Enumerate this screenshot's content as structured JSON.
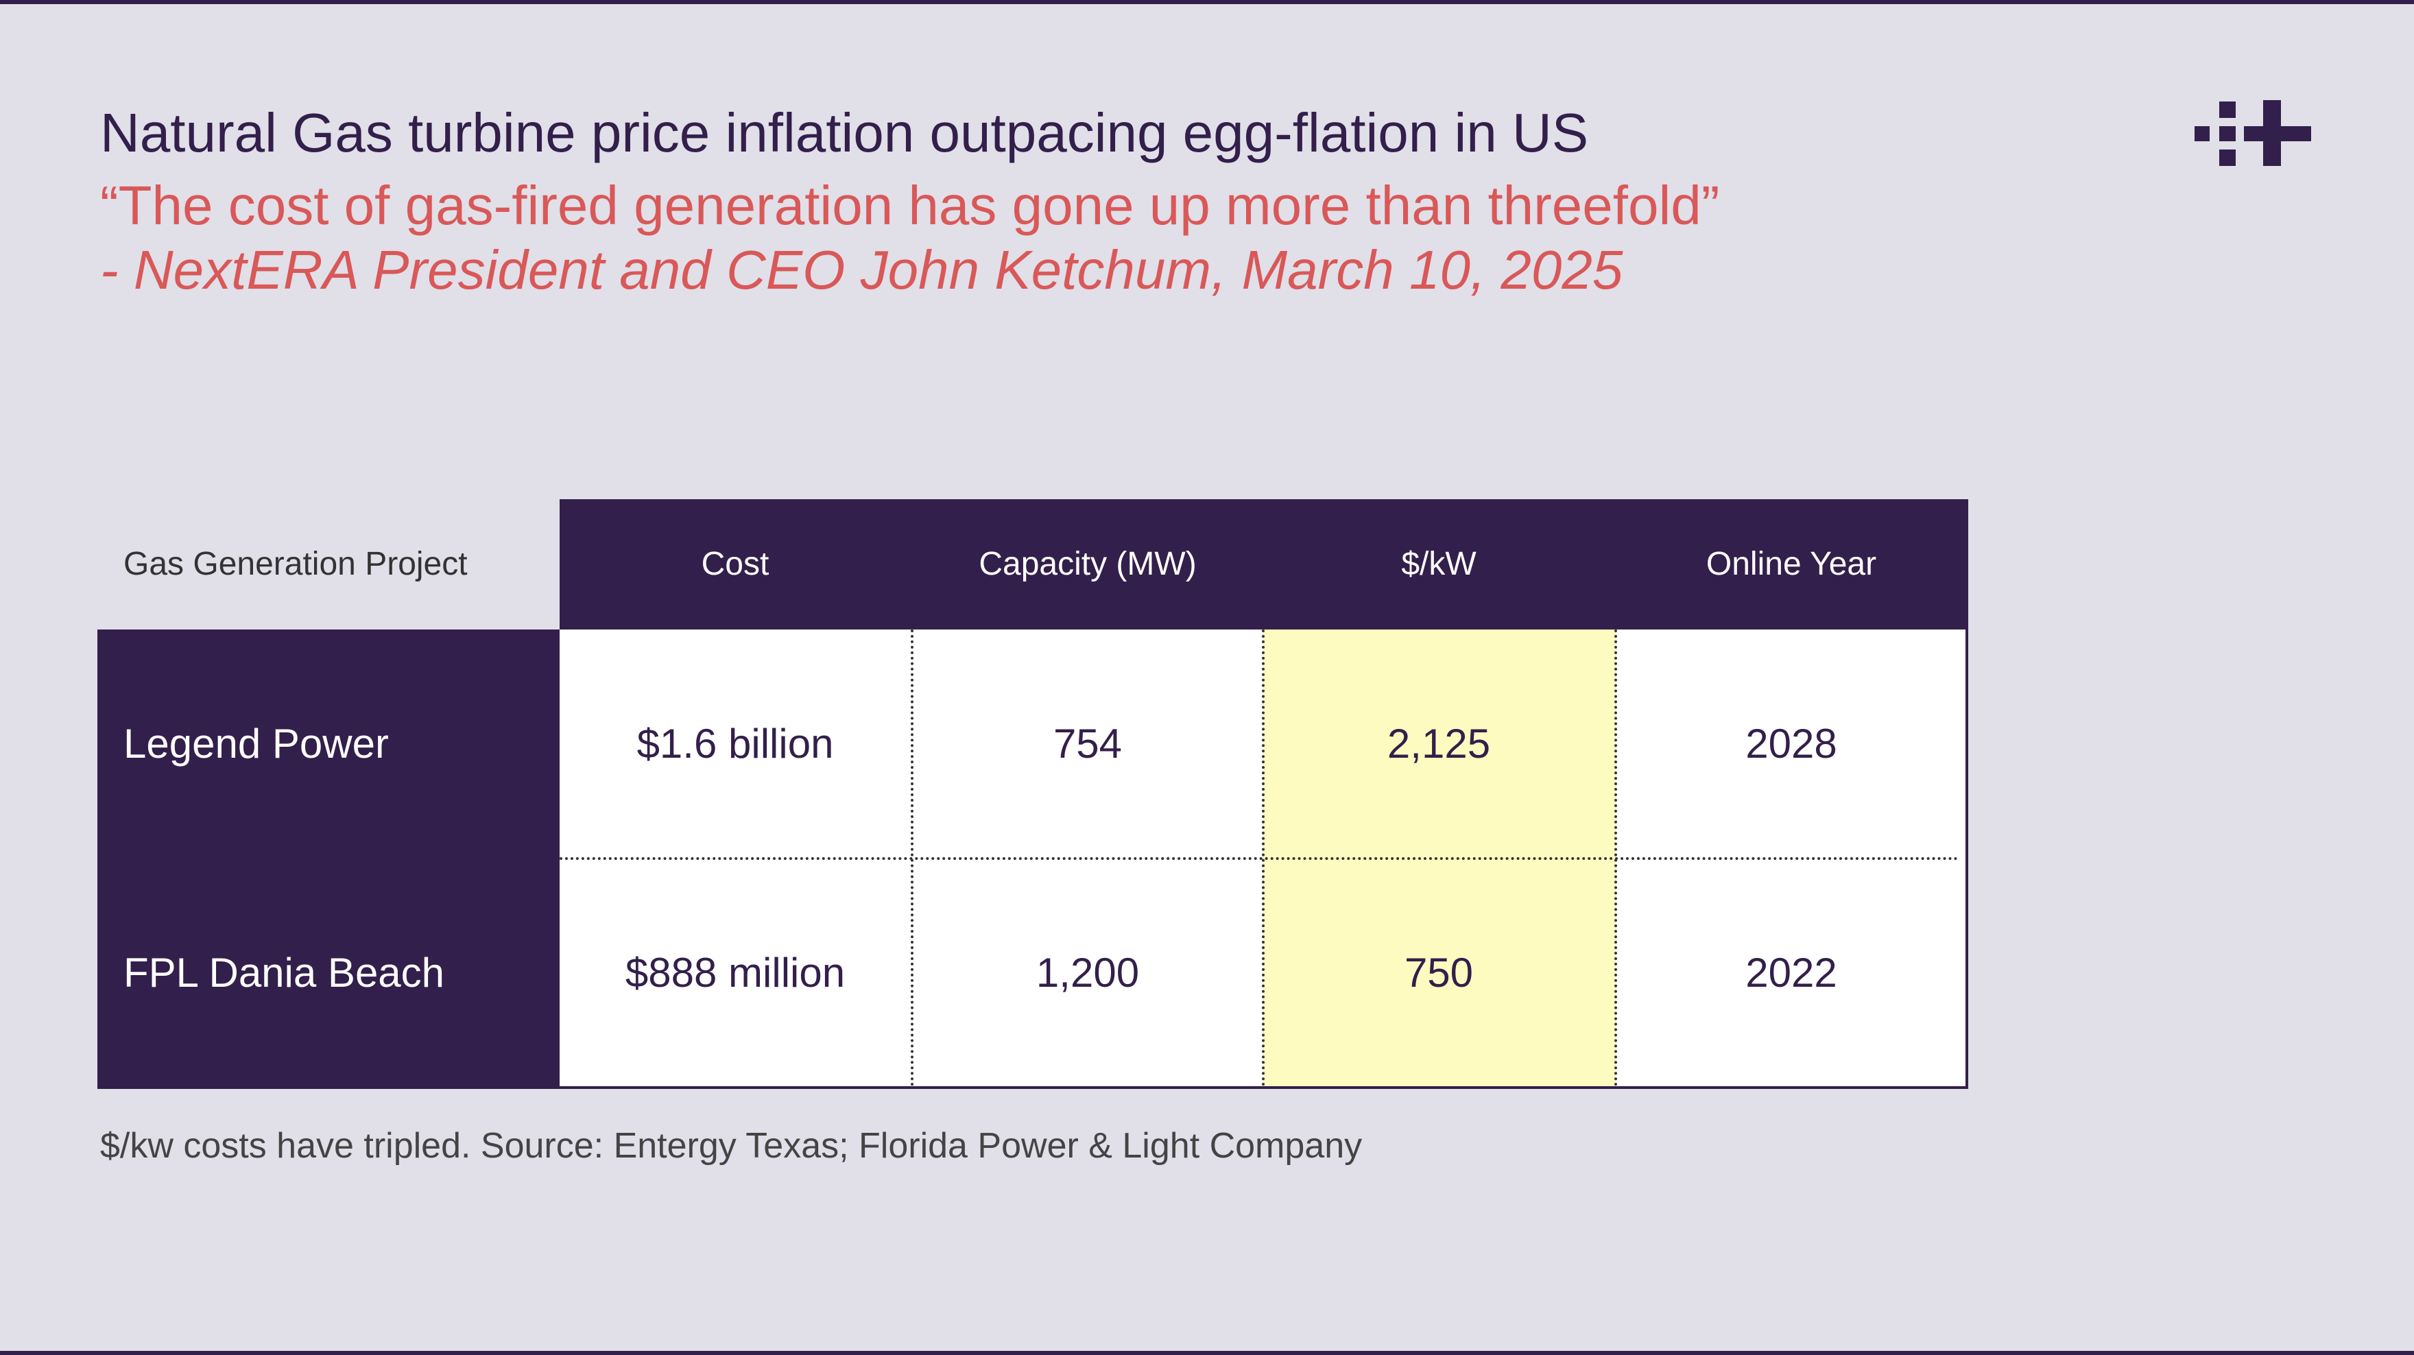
{
  "slide": {
    "title": "Natural Gas turbine price inflation outpacing egg-flation in US",
    "quote": "“The cost of gas-fired generation has gone up more than threefold”",
    "attribution": "- NextERA President and CEO John Ketchum, March 10, 2025",
    "footnote": "$/kw costs have tripled. Source: Entergy Texas; Florida Power & Light Company"
  },
  "logo": {
    "icon": "brand-mark-icon",
    "color": "#331f4b"
  },
  "table": {
    "corner_label": "Gas Generation Project",
    "columns": [
      "Cost",
      "Capacity (MW)",
      "$/kW",
      "Online Year"
    ],
    "highlight_column": "$/kW",
    "highlight_color": "#fdfbc0",
    "header_color": "#331f4b",
    "rows": [
      {
        "project": "Legend Power",
        "cells": [
          "$1.6 billion",
          "754",
          "2,125",
          "2028"
        ]
      },
      {
        "project": "FPL Dania Beach",
        "cells": [
          "$888 million",
          "1,200",
          "750",
          "2022"
        ]
      }
    ]
  },
  "colors": {
    "background": "#e1dfe8",
    "quote": "#d95858",
    "title": "#331f4b"
  }
}
